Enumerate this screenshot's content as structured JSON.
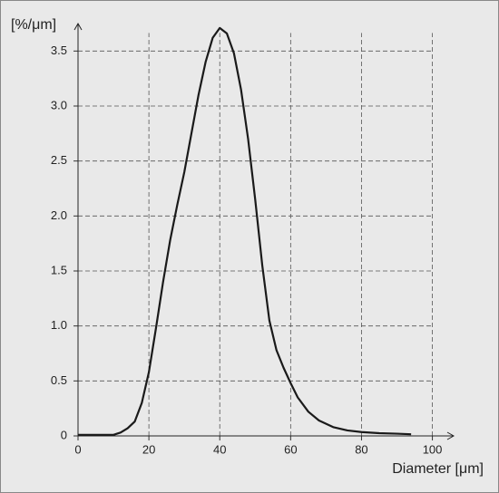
{
  "chart_data": {
    "type": "line",
    "y_label": "[%/μm]",
    "x_label": "Diameter [μm]",
    "x": [
      0,
      5,
      10,
      12,
      14,
      16,
      18,
      20,
      22,
      24,
      26,
      28,
      30,
      32,
      34,
      36,
      38,
      40,
      42,
      44,
      46,
      48,
      50,
      52,
      54,
      56,
      58,
      60,
      62,
      65,
      68,
      72,
      76,
      80,
      85,
      90,
      94
    ],
    "series": [
      {
        "name": null,
        "color": "#1a1a1a",
        "values": [
          0.01,
          0.01,
          0.01,
          0.03,
          0.07,
          0.13,
          0.3,
          0.58,
          0.98,
          1.4,
          1.78,
          2.1,
          2.4,
          2.75,
          3.1,
          3.4,
          3.62,
          3.71,
          3.66,
          3.48,
          3.15,
          2.7,
          2.15,
          1.55,
          1.05,
          0.78,
          0.62,
          0.48,
          0.35,
          0.22,
          0.14,
          0.08,
          0.05,
          0.035,
          0.025,
          0.02,
          0.015
        ]
      }
    ],
    "xlim": [
      0,
      106
    ],
    "ylim": [
      0,
      3.75
    ],
    "xticks": [
      0,
      20,
      40,
      60,
      80,
      100
    ],
    "yticks": [
      0,
      0.5,
      {
        "value": 1,
        "label": "1.0"
      },
      1.5,
      {
        "value": 2,
        "label": "2.0"
      },
      2.5,
      {
        "value": 3,
        "label": "3.0"
      },
      3.5
    ],
    "grid": true
  }
}
